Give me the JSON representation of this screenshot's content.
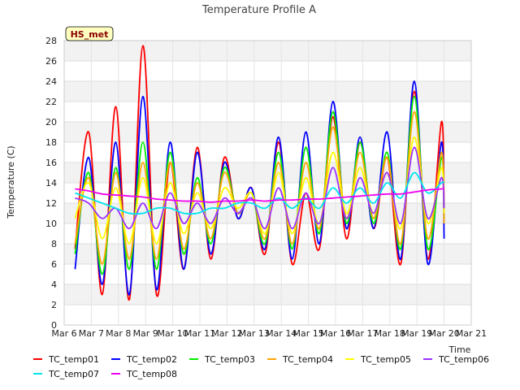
{
  "chart_data": {
    "type": "line",
    "title": "Temperature Profile A",
    "xlabel": "Time",
    "ylabel": "Temperature (C)",
    "badge": "HS_met",
    "ylim": [
      0,
      28
    ],
    "yticks": [
      0,
      2,
      4,
      6,
      8,
      10,
      12,
      14,
      16,
      18,
      20,
      22,
      24,
      26,
      28
    ],
    "xlim": [
      0,
      15
    ],
    "xtick_labels": [
      "Mar 6",
      "Mar 7",
      "Mar 8",
      "Mar 9",
      "Mar 10",
      "Mar 11",
      "Mar 12",
      "Mar 13",
      "Mar 14",
      "Mar 15",
      "Mar 16",
      "Mar 17",
      "Mar 18",
      "Mar 19",
      "Mar 20",
      "Mar 21"
    ],
    "grid": true,
    "legend_position": "bottom",
    "x_unit": "days since Mar 6 (0.5-day steps, Mar 6.4 to Mar 20.0)",
    "x": [
      0.4,
      0.9,
      1.4,
      1.9,
      2.4,
      2.9,
      3.4,
      3.9,
      4.4,
      4.9,
      5.4,
      5.9,
      6.4,
      6.9,
      7.4,
      7.9,
      8.4,
      8.9,
      9.4,
      9.9,
      10.4,
      10.9,
      11.4,
      11.9,
      12.4,
      12.9,
      13.4,
      13.9,
      14.0
    ],
    "series": [
      {
        "name": "TC_temp01",
        "color": "#ff0000",
        "values": [
          7.5,
          19.0,
          3.0,
          21.5,
          2.5,
          27.5,
          3.0,
          16.0,
          5.5,
          17.5,
          6.5,
          16.5,
          10.5,
          13.5,
          7.0,
          18.0,
          6.0,
          13.0,
          7.5,
          20.5,
          8.5,
          18.0,
          9.5,
          16.5,
          6.0,
          23.0,
          6.5,
          20.0,
          11.0
        ]
      },
      {
        "name": "TC_temp02",
        "color": "#0000ff",
        "values": [
          5.5,
          16.5,
          4.0,
          18.0,
          3.0,
          22.5,
          3.5,
          18.0,
          5.5,
          17.0,
          7.0,
          16.0,
          10.5,
          13.5,
          7.5,
          18.5,
          6.5,
          19.0,
          8.0,
          22.0,
          9.5,
          18.5,
          9.5,
          19.0,
          6.5,
          24.0,
          6.0,
          18.0,
          8.5
        ]
      },
      {
        "name": "TC_temp03",
        "color": "#00ee00",
        "values": [
          7.0,
          15.0,
          5.0,
          15.5,
          5.5,
          18.0,
          5.5,
          17.0,
          7.0,
          14.5,
          8.0,
          15.5,
          11.0,
          13.0,
          8.0,
          17.0,
          7.5,
          17.5,
          9.0,
          21.0,
          10.0,
          18.0,
          10.0,
          17.0,
          7.5,
          22.5,
          7.5,
          16.5,
          10.5
        ]
      },
      {
        "name": "TC_temp04",
        "color": "#ffa500",
        "values": [
          8.0,
          14.5,
          6.0,
          15.0,
          6.5,
          16.0,
          6.5,
          16.0,
          7.5,
          14.0,
          8.5,
          15.0,
          11.0,
          13.0,
          8.5,
          16.0,
          8.0,
          16.0,
          9.5,
          19.5,
          10.5,
          17.0,
          10.5,
          16.5,
          8.0,
          21.0,
          8.5,
          17.0,
          10.0
        ]
      },
      {
        "name": "TC_temp05",
        "color": "#ffff00",
        "values": [
          10.5,
          14.0,
          8.5,
          13.5,
          8.0,
          14.5,
          8.0,
          14.0,
          9.0,
          13.0,
          9.5,
          13.5,
          11.5,
          13.0,
          9.0,
          15.0,
          9.0,
          14.5,
          10.0,
          17.0,
          11.0,
          15.5,
          11.0,
          15.0,
          9.5,
          18.5,
          10.0,
          15.5,
          11.0
        ]
      },
      {
        "name": "TC_temp06",
        "color": "#9b30ff",
        "values": [
          12.5,
          12.0,
          10.5,
          11.5,
          9.5,
          12.0,
          9.5,
          13.0,
          10.0,
          12.0,
          10.0,
          12.5,
          11.0,
          12.5,
          9.5,
          13.5,
          9.5,
          13.0,
          10.0,
          15.5,
          10.5,
          14.5,
          11.0,
          15.0,
          10.0,
          17.5,
          10.5,
          14.5,
          11.5
        ]
      },
      {
        "name": "TC_temp07",
        "color": "#00e5ee",
        "values": [
          13.0,
          12.5,
          12.0,
          11.5,
          11.0,
          11.0,
          11.5,
          11.5,
          11.0,
          11.0,
          11.5,
          11.5,
          12.0,
          12.0,
          11.5,
          12.5,
          11.5,
          12.5,
          11.5,
          13.5,
          12.0,
          13.5,
          12.0,
          14.0,
          12.5,
          15.0,
          13.0,
          14.0,
          14.0
        ]
      },
      {
        "name": "TC_temp08",
        "color": "#ee00ee",
        "values": [
          13.4,
          13.2,
          12.9,
          12.8,
          12.7,
          12.6,
          12.4,
          12.3,
          12.2,
          12.2,
          12.1,
          12.2,
          12.2,
          12.3,
          12.2,
          12.3,
          12.3,
          12.4,
          12.4,
          12.5,
          12.6,
          12.7,
          12.8,
          12.9,
          12.9,
          13.1,
          13.3,
          13.4,
          13.5
        ]
      }
    ]
  }
}
